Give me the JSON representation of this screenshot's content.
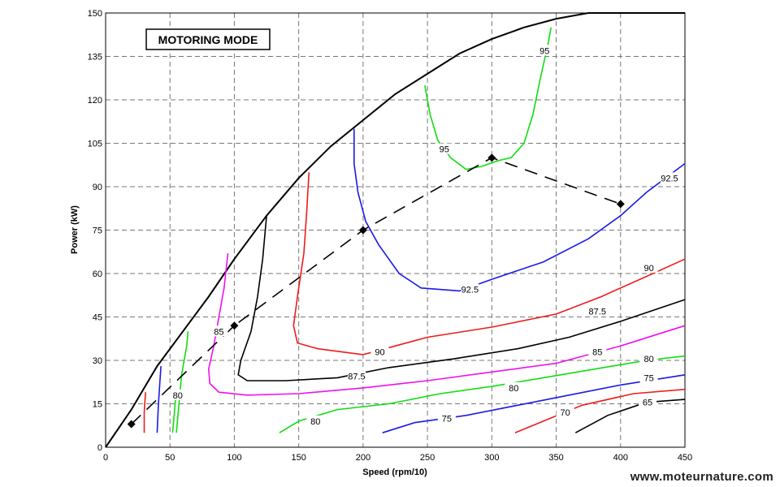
{
  "chart_data": {
    "type": "line",
    "title": "MOTORING MODE",
    "xlabel": "Speed (rpm/10)",
    "ylabel": "Power (kW)",
    "xlim": [
      0,
      450
    ],
    "ylim": [
      0,
      150
    ],
    "x_ticks": [
      "0",
      "50",
      "100",
      "150",
      "200",
      "250",
      "300",
      "350",
      "400",
      "450"
    ],
    "y_ticks": [
      "0",
      "15",
      "30",
      "45",
      "60",
      "75",
      "90",
      "105",
      "120",
      "135",
      "150"
    ],
    "grid": true,
    "legend": "none",
    "envelope": {
      "color": "#000000",
      "points": [
        [
          0,
          0
        ],
        [
          20,
          13
        ],
        [
          40,
          28
        ],
        [
          60,
          40
        ],
        [
          80,
          52
        ],
        [
          100,
          65
        ],
        [
          125,
          80
        ],
        [
          150,
          93
        ],
        [
          175,
          104
        ],
        [
          200,
          113
        ],
        [
          225,
          122
        ],
        [
          250,
          129
        ],
        [
          275,
          136
        ],
        [
          300,
          141
        ],
        [
          325,
          145
        ],
        [
          350,
          148
        ],
        [
          375,
          150
        ],
        [
          450,
          150
        ]
      ]
    },
    "operating_line": {
      "color": "#000000",
      "points": [
        [
          20,
          8
        ],
        [
          100,
          42
        ],
        [
          200,
          75
        ],
        [
          300,
          100
        ],
        [
          400,
          84
        ]
      ]
    },
    "series": [
      {
        "name": "65",
        "color": "#000000",
        "points": [
          [
            365,
            5
          ],
          [
            390,
            11
          ],
          [
            420,
            15.5
          ],
          [
            450,
            16.5
          ]
        ],
        "labels": [
          {
            "text": "65",
            "x": 421,
            "y": 15.5
          }
        ]
      },
      {
        "name": "70",
        "color": "#ee1c1c",
        "points": [
          [
            318,
            5
          ],
          [
            340,
            9
          ],
          [
            370,
            14.5
          ],
          [
            410,
            18.5
          ],
          [
            450,
            20
          ]
        ],
        "labels": [
          {
            "text": "70",
            "x": 357,
            "y": 12
          }
        ]
      },
      {
        "name": "75",
        "color": "#1a1ae6",
        "points": [
          [
            215,
            5
          ],
          [
            240,
            8.5
          ],
          [
            280,
            11
          ],
          [
            320,
            14.5
          ],
          [
            360,
            18
          ],
          [
            400,
            21.5
          ],
          [
            450,
            25
          ]
        ],
        "labels": [
          {
            "text": "75",
            "x": 265,
            "y": 10
          },
          {
            "text": "75",
            "x": 422,
            "y": 24
          }
        ]
      },
      {
        "name": "80a",
        "color": "#11dd11",
        "points": [
          [
            135,
            5
          ],
          [
            150,
            9
          ],
          [
            180,
            13
          ],
          [
            220,
            15
          ],
          [
            260,
            18.5
          ],
          [
            300,
            21
          ],
          [
            340,
            24
          ],
          [
            380,
            27
          ],
          [
            420,
            30
          ],
          [
            450,
            31.5
          ]
        ],
        "labels": [
          {
            "text": "80",
            "x": 163,
            "y": 9
          },
          {
            "text": "80",
            "x": 317,
            "y": 20.5
          },
          {
            "text": "80",
            "x": 422,
            "y": 30.5
          }
        ]
      },
      {
        "name": "80b",
        "color": "#11dd11",
        "points": [
          [
            55,
            5
          ],
          [
            57,
            15
          ],
          [
            59,
            25
          ],
          [
            63,
            35
          ],
          [
            64,
            40
          ]
        ],
        "labels": [
          {
            "text": "80",
            "x": 56,
            "y": 18
          }
        ]
      },
      {
        "name": "80c",
        "color": "#11dd11",
        "points": [
          [
            52,
            5
          ],
          [
            53,
            10
          ],
          [
            55,
            20
          ]
        ],
        "labels": []
      },
      {
        "name": "red left",
        "color": "#ee1c1c",
        "points": [
          [
            30,
            5
          ],
          [
            30,
            12
          ],
          [
            31,
            19
          ]
        ],
        "labels": []
      },
      {
        "name": "blue left",
        "color": "#1a1ae6",
        "points": [
          [
            40,
            5
          ],
          [
            41,
            15
          ],
          [
            43,
            28
          ]
        ],
        "labels": []
      },
      {
        "name": "85",
        "color": "#ee11ee",
        "points": [
          [
            95,
            67
          ],
          [
            92,
            55
          ],
          [
            88,
            45
          ],
          [
            84,
            35
          ],
          [
            80,
            27
          ],
          [
            81,
            22
          ],
          [
            88,
            19
          ],
          [
            110,
            18
          ],
          [
            150,
            18.5
          ],
          [
            200,
            20.5
          ],
          [
            250,
            23
          ],
          [
            300,
            26
          ],
          [
            350,
            29
          ],
          [
            400,
            35
          ],
          [
            450,
            42
          ]
        ],
        "labels": [
          {
            "text": "85",
            "x": 88,
            "y": 40
          },
          {
            "text": "85",
            "x": 382,
            "y": 33
          }
        ]
      },
      {
        "name": "87.5",
        "color": "#000000",
        "points": [
          [
            125,
            80
          ],
          [
            122,
            65
          ],
          [
            118,
            52
          ],
          [
            113,
            40
          ],
          [
            105,
            30
          ],
          [
            103,
            25
          ],
          [
            110,
            23
          ],
          [
            140,
            23
          ],
          [
            180,
            24
          ],
          [
            220,
            27.5
          ],
          [
            270,
            30.5
          ],
          [
            320,
            34
          ],
          [
            360,
            38
          ],
          [
            400,
            43.5
          ],
          [
            450,
            51
          ]
        ],
        "labels": [
          {
            "text": "87.5",
            "x": 195,
            "y": 24.5
          },
          {
            "text": "87.5",
            "x": 382,
            "y": 47
          }
        ]
      },
      {
        "name": "90",
        "color": "#ee1c1c",
        "points": [
          [
            158,
            95
          ],
          [
            156,
            80
          ],
          [
            154,
            67
          ],
          [
            149,
            52
          ],
          [
            146,
            42
          ],
          [
            149,
            36
          ],
          [
            165,
            34
          ],
          [
            200,
            32
          ],
          [
            250,
            38
          ],
          [
            300,
            41.5
          ],
          [
            350,
            46
          ],
          [
            385,
            52
          ],
          [
            420,
            59
          ],
          [
            450,
            65
          ]
        ],
        "labels": [
          {
            "text": "90",
            "x": 213,
            "y": 33
          },
          {
            "text": "90",
            "x": 422,
            "y": 62
          }
        ]
      },
      {
        "name": "92.5",
        "color": "#1a1ae6",
        "points": [
          [
            193,
            110
          ],
          [
            193,
            98
          ],
          [
            196,
            88
          ],
          [
            202,
            78
          ],
          [
            212,
            70
          ],
          [
            228,
            60
          ],
          [
            245,
            55
          ],
          [
            275,
            54
          ],
          [
            300,
            58
          ],
          [
            340,
            64
          ],
          [
            375,
            72
          ],
          [
            400,
            80
          ],
          [
            420,
            88
          ],
          [
            450,
            98
          ]
        ],
        "labels": [
          {
            "text": "92.5",
            "x": 283,
            "y": 54.5
          },
          {
            "text": "92.5",
            "x": 438,
            "y": 93
          }
        ]
      },
      {
        "name": "95",
        "color": "#11dd11",
        "points": [
          [
            248,
            125
          ],
          [
            252,
            115
          ],
          [
            258,
            106
          ],
          [
            268,
            100
          ],
          [
            280,
            96
          ],
          [
            292,
            97
          ],
          [
            305,
            99
          ],
          [
            315,
            100
          ],
          [
            325,
            105
          ],
          [
            332,
            115
          ],
          [
            338,
            128
          ],
          [
            344,
            140
          ],
          [
            346,
            145
          ]
        ],
        "labels": [
          {
            "text": "95",
            "x": 263,
            "y": 103
          },
          {
            "text": "95",
            "x": 341,
            "y": 137
          }
        ]
      }
    ]
  },
  "watermark": "www.moteurnature.com"
}
